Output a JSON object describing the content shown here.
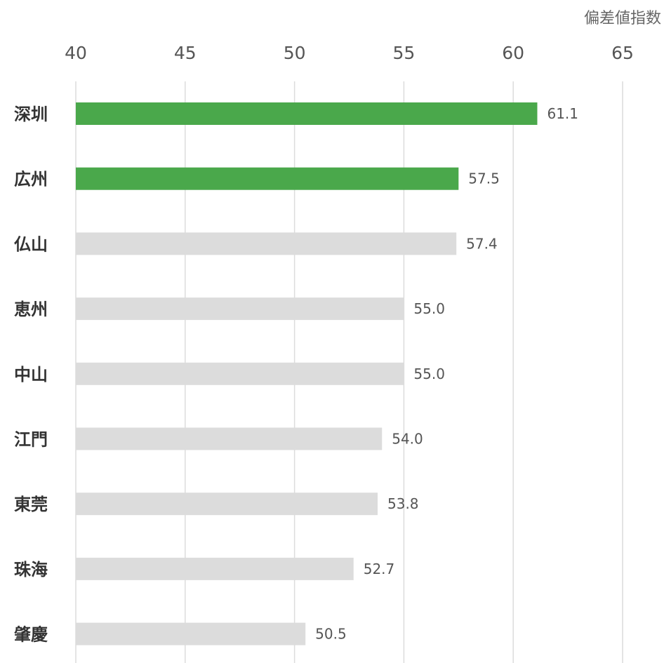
{
  "chart_data": {
    "type": "bar",
    "orientation": "horizontal",
    "unit_label": "偏差値指数",
    "xlim": [
      40,
      65
    ],
    "ticks": [
      "40",
      "45",
      "50",
      "55",
      "60",
      "65"
    ],
    "grid": true,
    "categories": [
      "深圳",
      "広州",
      "仏山",
      "恵州",
      "中山",
      "江門",
      "東莞",
      "珠海",
      "肇慶"
    ],
    "values": [
      61.1,
      57.5,
      57.4,
      55.0,
      55.0,
      54.0,
      53.8,
      52.7,
      50.5
    ],
    "value_labels": [
      "61.1",
      "57.5",
      "57.4",
      "55.0",
      "55.0",
      "54.0",
      "53.8",
      "52.7",
      "50.5"
    ],
    "highlighted": [
      true,
      true,
      false,
      false,
      false,
      false,
      false,
      false,
      false
    ],
    "colors": {
      "highlight": "#4aa84b",
      "default": "#dcdcdc"
    }
  }
}
